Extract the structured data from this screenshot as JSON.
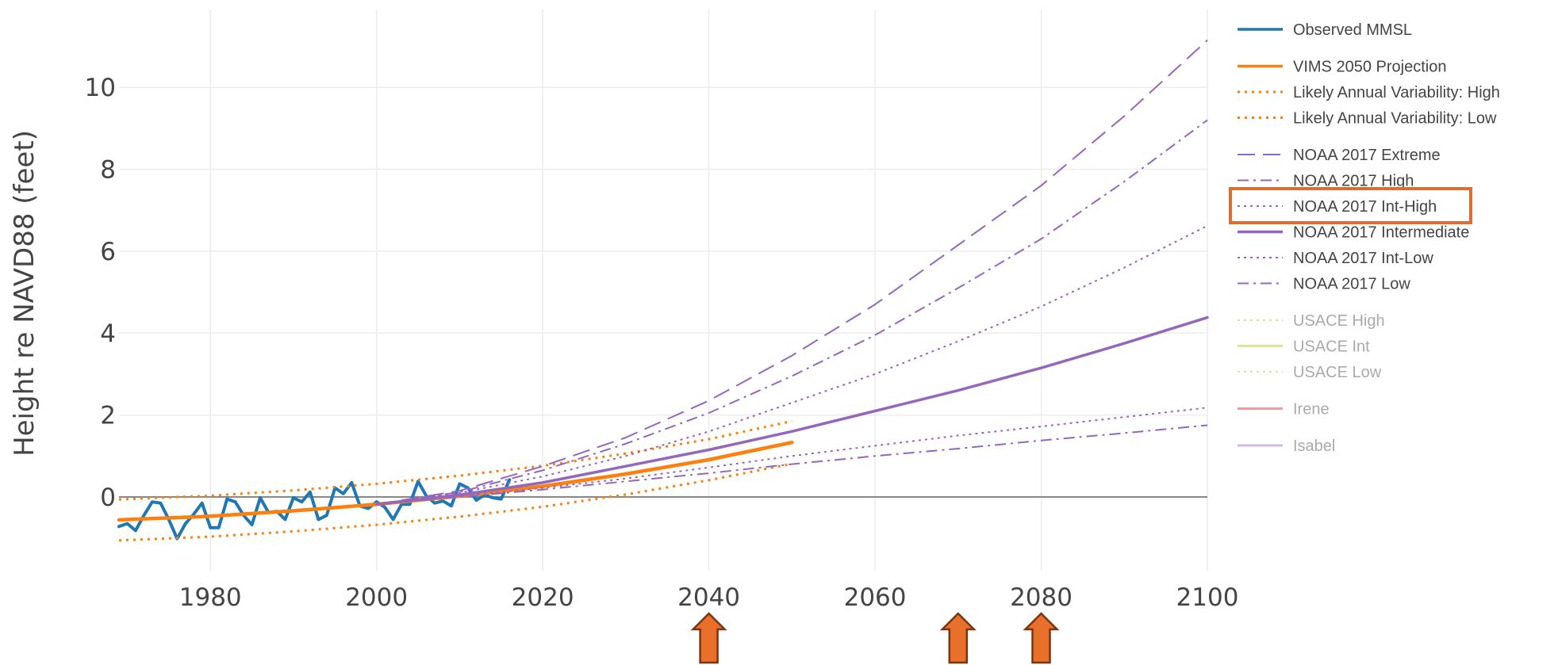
{
  "chart_data": {
    "type": "line",
    "title": "",
    "xlabel": "",
    "ylabel": "Height re NAVD88 (feet)",
    "xlim": [
      1969,
      2100
    ],
    "ylim": [
      -1.8,
      11.9
    ],
    "xticks": [
      1980,
      2000,
      2020,
      2040,
      2060,
      2080,
      2100
    ],
    "yticks": [
      0,
      2,
      4,
      6,
      8,
      10
    ],
    "grid": true,
    "legend_position": "right",
    "zero_line": 0,
    "series": [
      {
        "name": "Observed MMSL",
        "color": "#1f77b4",
        "dash": "solid",
        "width": 4,
        "active": true,
        "x": [
          1969,
          1970,
          1971,
          1972,
          1973,
          1974,
          1975,
          1976,
          1977,
          1978,
          1979,
          1980,
          1981,
          1982,
          1983,
          1984,
          1985,
          1986,
          1987,
          1988,
          1989,
          1990,
          1991,
          1992,
          1993,
          1994,
          1995,
          1996,
          1997,
          1998,
          1999,
          2000,
          2001,
          2002,
          2003,
          2004,
          2005,
          2006,
          2007,
          2008,
          2009,
          2010,
          2011,
          2012,
          2013,
          2014,
          2015,
          2016
        ],
        "y": [
          -0.72,
          -0.65,
          -0.82,
          -0.45,
          -0.12,
          -0.15,
          -0.55,
          -1.02,
          -0.65,
          -0.42,
          -0.15,
          -0.75,
          -0.75,
          -0.05,
          -0.12,
          -0.45,
          -0.68,
          -0.02,
          -0.38,
          -0.35,
          -0.55,
          -0.02,
          -0.12,
          0.12,
          -0.55,
          -0.45,
          0.22,
          0.08,
          0.35,
          -0.22,
          -0.28,
          -0.12,
          -0.25,
          -0.55,
          -0.18,
          -0.18,
          0.38,
          0.02,
          -0.15,
          -0.1,
          -0.22,
          0.32,
          0.22,
          -0.08,
          0.05,
          -0.02,
          -0.05,
          0.42
        ]
      },
      {
        "name": "VIMS 2050 Projection",
        "color": "#ff7f0e",
        "dash": "solid",
        "width": 4.5,
        "active": true,
        "x": [
          1969,
          1980,
          1990,
          2000,
          2010,
          2020,
          2030,
          2040,
          2050
        ],
        "y": [
          -0.56,
          -0.47,
          -0.34,
          -0.18,
          0.02,
          0.26,
          0.56,
          0.91,
          1.33
        ]
      },
      {
        "name": "Likely Annual Variability: High",
        "color": "#ff7f0e",
        "dash": "3,6",
        "width": 3,
        "active": true,
        "x": [
          1969,
          1980,
          1990,
          2000,
          2010,
          2020,
          2030,
          2040,
          2050
        ],
        "y": [
          -0.06,
          0.03,
          0.16,
          0.32,
          0.52,
          0.76,
          1.06,
          1.41,
          1.85
        ]
      },
      {
        "name": "Likely Annual Variability: Low",
        "color": "#ff7f0e",
        "dash": "3,6",
        "width": 3,
        "active": true,
        "x": [
          1969,
          1980,
          1990,
          2000,
          2010,
          2020,
          2030,
          2040,
          2050
        ],
        "y": [
          -1.06,
          -0.97,
          -0.84,
          -0.68,
          -0.48,
          -0.24,
          0.06,
          0.41,
          0.81
        ]
      },
      {
        "name": "NOAA 2017 Extreme",
        "color": "#9467bd",
        "dash": "22,10",
        "width": 2,
        "active": true,
        "x": [
          2000,
          2010,
          2020,
          2030,
          2040,
          2050,
          2060,
          2070,
          2080,
          2090,
          2100
        ],
        "y": [
          -0.18,
          0.15,
          0.75,
          1.45,
          2.35,
          3.45,
          4.7,
          6.15,
          7.6,
          9.3,
          11.15
        ]
      },
      {
        "name": "NOAA 2017 High",
        "color": "#9467bd",
        "dash": "14,6,3,6",
        "width": 2,
        "active": true,
        "x": [
          2000,
          2010,
          2020,
          2030,
          2040,
          2050,
          2060,
          2070,
          2080,
          2090,
          2100
        ],
        "y": [
          -0.18,
          0.12,
          0.65,
          1.3,
          2.05,
          2.95,
          3.95,
          5.1,
          6.3,
          7.7,
          9.2
        ]
      },
      {
        "name": "NOAA 2017 Int-High",
        "color": "#9467bd",
        "dash": "3,5",
        "width": 2,
        "active": true,
        "x": [
          2000,
          2010,
          2020,
          2030,
          2040,
          2050,
          2060,
          2070,
          2080,
          2090,
          2100
        ],
        "y": [
          -0.18,
          0.1,
          0.5,
          1.0,
          1.6,
          2.3,
          3.0,
          3.8,
          4.65,
          5.6,
          6.62
        ]
      },
      {
        "name": "NOAA 2017 Intermediate",
        "color": "#9467bd",
        "dash": "solid",
        "width": 3.5,
        "active": true,
        "x": [
          2000,
          2010,
          2020,
          2030,
          2040,
          2050,
          2060,
          2070,
          2080,
          2090,
          2100
        ],
        "y": [
          -0.18,
          0.05,
          0.35,
          0.75,
          1.15,
          1.6,
          2.1,
          2.6,
          3.15,
          3.75,
          4.38
        ]
      },
      {
        "name": "NOAA 2017 Int-Low",
        "color": "#9467bd",
        "dash": "3,5",
        "width": 2,
        "active": true,
        "x": [
          2000,
          2010,
          2020,
          2030,
          2040,
          2050,
          2060,
          2070,
          2080,
          2090,
          2100
        ],
        "y": [
          -0.18,
          0.02,
          0.22,
          0.45,
          0.72,
          1.0,
          1.25,
          1.5,
          1.72,
          1.95,
          2.18
        ]
      },
      {
        "name": "NOAA 2017 Low",
        "color": "#9467bd",
        "dash": "14,6,3,6",
        "width": 2,
        "active": true,
        "x": [
          2000,
          2010,
          2020,
          2030,
          2040,
          2050,
          2060,
          2070,
          2080,
          2090,
          2100
        ],
        "y": [
          -0.18,
          0.0,
          0.18,
          0.38,
          0.58,
          0.8,
          1.0,
          1.18,
          1.38,
          1.56,
          1.75
        ]
      },
      {
        "name": "USACE High",
        "color": "#bcbd22",
        "dash": "3,5",
        "width": 2,
        "active": false,
        "x": [],
        "y": []
      },
      {
        "name": "USACE Int",
        "color": "#bcbd22",
        "dash": "solid",
        "width": 3,
        "active": false,
        "x": [],
        "y": []
      },
      {
        "name": "USACE Low",
        "color": "#bcbd22",
        "dash": "3,5",
        "width": 2,
        "active": false,
        "x": [],
        "y": []
      },
      {
        "name": "Irene",
        "color": "#d62728",
        "dash": "solid",
        "width": 3,
        "active": false,
        "x": [],
        "y": []
      },
      {
        "name": "Isabel",
        "color": "#9467bd",
        "dash": "solid",
        "width": 3,
        "active": false,
        "x": [],
        "y": []
      }
    ],
    "annotations": {
      "highlight_legend_entry": "NOAA 2017 Int-High",
      "highlight_color": "#e06c30",
      "arrow_markers_x": [
        2040,
        2070,
        2080
      ],
      "arrow_color": "#e8702a"
    }
  }
}
